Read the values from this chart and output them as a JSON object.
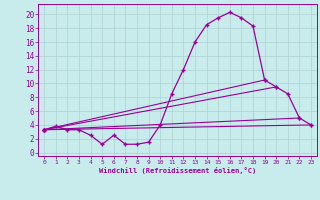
{
  "xlabel": "Windchill (Refroidissement éolien,°C)",
  "bg_color": "#c8ecec",
  "grid_color": "#b0d0d0",
  "line_color": "#990099",
  "xlim": [
    -0.5,
    23.5
  ],
  "ylim": [
    -0.5,
    21.5
  ],
  "xticks": [
    0,
    1,
    2,
    3,
    4,
    5,
    6,
    7,
    8,
    9,
    10,
    11,
    12,
    13,
    14,
    15,
    16,
    17,
    18,
    19,
    20,
    21,
    22,
    23
  ],
  "yticks": [
    0,
    2,
    4,
    6,
    8,
    10,
    12,
    14,
    16,
    18,
    20
  ],
  "series1_x": [
    0,
    1,
    2,
    3,
    4,
    5,
    6,
    7,
    8,
    9,
    10,
    11,
    12,
    13,
    14,
    15,
    16,
    17,
    18,
    19,
    20,
    21,
    22,
    23
  ],
  "series1_y": [
    3.3,
    3.8,
    3.3,
    3.3,
    2.5,
    1.2,
    2.5,
    1.2,
    1.2,
    1.5,
    4.0,
    8.5,
    12.0,
    16.0,
    18.5,
    19.5,
    20.3,
    19.5,
    18.3,
    10.5,
    9.5,
    8.5,
    5.0,
    4.0
  ],
  "series2_x": [
    0,
    23
  ],
  "series2_y": [
    3.3,
    4.0
  ],
  "series3_x": [
    0,
    22
  ],
  "series3_y": [
    3.3,
    5.0
  ],
  "series4_x": [
    0,
    20
  ],
  "series4_y": [
    3.3,
    9.5
  ],
  "series5_x": [
    0,
    19
  ],
  "series5_y": [
    3.3,
    10.5
  ]
}
